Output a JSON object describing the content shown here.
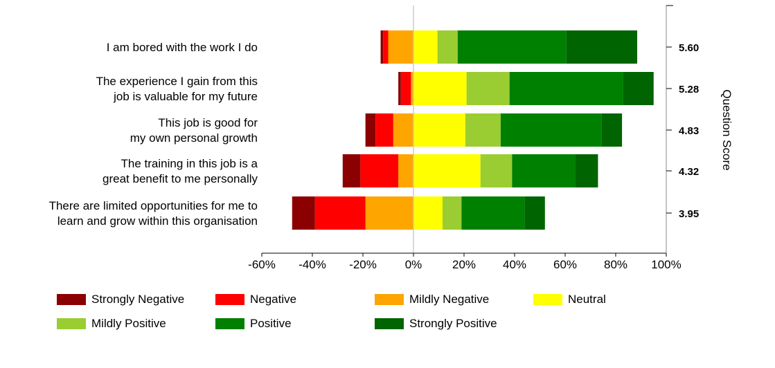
{
  "chart_data": {
    "type": "bar",
    "stacked": true,
    "orientation": "horizontal",
    "diverging": true,
    "categories": [
      [
        "I am bored with the work I do"
      ],
      [
        "The experience I gain from this",
        "job is valuable for my future"
      ],
      [
        "This job is good for",
        "my own personal growth"
      ],
      [
        "The training in this job is a",
        "great benefit to me personally"
      ],
      [
        "There are limited opportunities for me to",
        "learn and grow within this organisation"
      ]
    ],
    "series": [
      {
        "name": "Strongly Negative",
        "color": "#8B0000",
        "values": [
          -1,
          -1,
          -4,
          -7,
          -9
        ]
      },
      {
        "name": "Negative",
        "color": "#FF0000",
        "values": [
          -2,
          -4,
          -7,
          -15,
          -20
        ]
      },
      {
        "name": "Mildly Negative",
        "color": "#FFA500",
        "values": [
          -10,
          -1,
          -8,
          -6,
          -19
        ]
      },
      {
        "name": "Neutral",
        "color": "#FFFF00",
        "values": [
          9.5,
          21,
          20.5,
          26.5,
          11.5
        ]
      },
      {
        "name": "Mildly Positive",
        "color": "#9ACD32",
        "values": [
          8,
          17,
          14,
          12.5,
          7.5
        ]
      },
      {
        "name": "Positive",
        "color": "#008000",
        "values": [
          43,
          45,
          40,
          25,
          25
        ]
      },
      {
        "name": "Strongly Positive",
        "color": "#006400",
        "values": [
          28,
          12,
          8,
          9,
          8
        ]
      }
    ],
    "question_scores": [
      "5.60",
      "5.28",
      "4.83",
      "4.32",
      "3.95"
    ],
    "x_ticks": [
      "-60%",
      "-40%",
      "-20%",
      "0%",
      "20%",
      "40%",
      "60%",
      "80%",
      "100%"
    ],
    "xlim": [
      -60,
      100
    ],
    "ylabel_right": "Question Score",
    "legend_position": "bottom"
  }
}
